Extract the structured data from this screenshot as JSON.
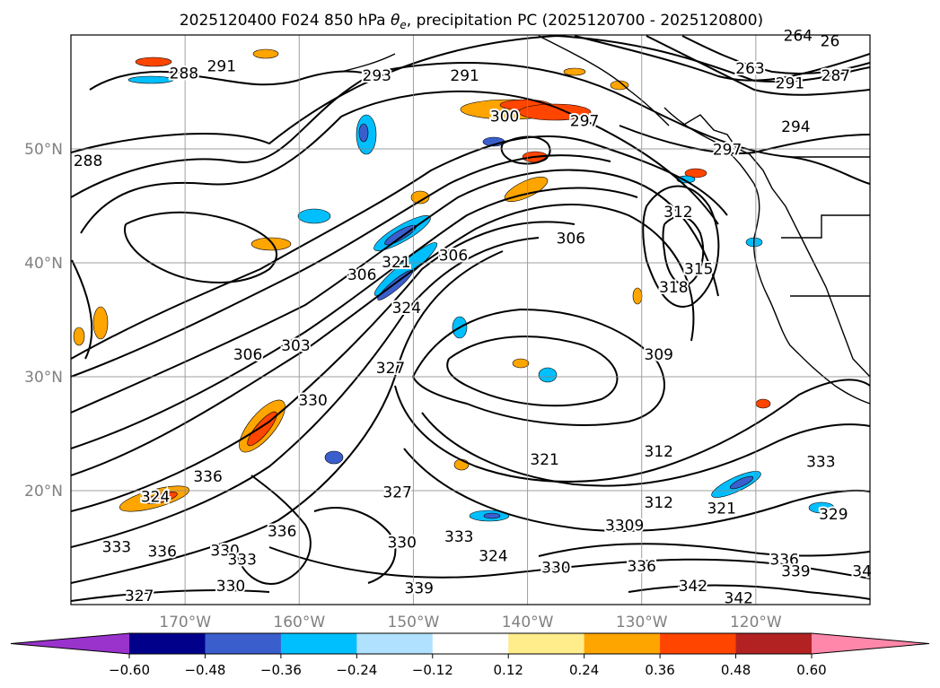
{
  "chart_data": {
    "type": "contour",
    "title": "2025120400 F024 850 hPa θe, precipitation PC (2025120700 - 2025120800)",
    "title_parts": {
      "pre": "2025120400 F024 850 hPa ",
      "theta": "θ",
      "sub": "e",
      "post": ", precipitation PC (2025120700 - 2025120800)"
    },
    "map": {
      "lon_range": [
        -180,
        -110
      ],
      "lat_range": [
        10,
        60
      ],
      "x_ticks": [
        {
          "lon": -170,
          "label": "170°W"
        },
        {
          "lon": -160,
          "label": "160°W"
        },
        {
          "lon": -150,
          "label": "150°W"
        },
        {
          "lon": -140,
          "label": "140°W"
        },
        {
          "lon": -130,
          "label": "130°W"
        },
        {
          "lon": -120,
          "label": "120°W"
        }
      ],
      "y_ticks": [
        {
          "lat": 20,
          "label": "20°N"
        },
        {
          "lat": 30,
          "label": "30°N"
        },
        {
          "lat": 40,
          "label": "40°N"
        },
        {
          "lat": 50,
          "label": "50°N"
        }
      ],
      "grid": true
    },
    "contour_labels": [
      {
        "v": "288",
        "lon": -170.1,
        "lat": 56.2
      },
      {
        "v": "291",
        "lon": -166.8,
        "lat": 56.8
      },
      {
        "v": "293",
        "lon": -153.2,
        "lat": 56.0
      },
      {
        "v": "291",
        "lon": -145.5,
        "lat": 56.0
      },
      {
        "v": "300",
        "lon": -142.0,
        "lat": 52.4
      },
      {
        "v": "297",
        "lon": -135.0,
        "lat": 52.0
      },
      {
        "v": "288",
        "lon": -178.5,
        "lat": 48.5
      },
      {
        "v": "306",
        "lon": -146.5,
        "lat": 40.2
      },
      {
        "v": "306",
        "lon": -136.2,
        "lat": 41.7
      },
      {
        "v": "306",
        "lon": -154.5,
        "lat": 38.5
      },
      {
        "v": "321",
        "lon": -151.5,
        "lat": 39.6
      },
      {
        "v": "324",
        "lon": -150.6,
        "lat": 35.6
      },
      {
        "v": "306",
        "lon": -164.5,
        "lat": 31.5
      },
      {
        "v": "303",
        "lon": -160.3,
        "lat": 32.3
      },
      {
        "v": "312",
        "lon": -126.8,
        "lat": 44.0
      },
      {
        "v": "315",
        "lon": -125.0,
        "lat": 39.0
      },
      {
        "v": "318",
        "lon": -127.2,
        "lat": 37.4
      },
      {
        "v": "309",
        "lon": -128.5,
        "lat": 31.5
      },
      {
        "v": "327",
        "lon": -152.0,
        "lat": 30.3
      },
      {
        "v": "330",
        "lon": -158.8,
        "lat": 27.5
      },
      {
        "v": "321",
        "lon": -138.5,
        "lat": 22.3
      },
      {
        "v": "312",
        "lon": -128.5,
        "lat": 23.0
      },
      {
        "v": "333",
        "lon": -114.3,
        "lat": 22.1
      },
      {
        "v": "336",
        "lon": -168.0,
        "lat": 20.8
      },
      {
        "v": "324",
        "lon": -172.6,
        "lat": 19.0
      },
      {
        "v": "327",
        "lon": -151.4,
        "lat": 19.4
      },
      {
        "v": "312",
        "lon": -128.5,
        "lat": 18.5
      },
      {
        "v": "321",
        "lon": -123.0,
        "lat": 18.0
      },
      {
        "v": "329",
        "lon": -113.2,
        "lat": 17.5
      },
      {
        "v": "333",
        "lon": -176.0,
        "lat": 14.6
      },
      {
        "v": "336",
        "lon": -172.0,
        "lat": 14.2
      },
      {
        "v": "330",
        "lon": -166.5,
        "lat": 14.3
      },
      {
        "v": "333",
        "lon": -165.0,
        "lat": 13.5
      },
      {
        "v": "336",
        "lon": -161.5,
        "lat": 16.0
      },
      {
        "v": "330",
        "lon": -151.0,
        "lat": 15.0
      },
      {
        "v": "333",
        "lon": -146.0,
        "lat": 15.5
      },
      {
        "v": "324",
        "lon": -143.0,
        "lat": 13.8
      },
      {
        "v": "330",
        "lon": -137.5,
        "lat": 12.8
      },
      {
        "v": "336",
        "lon": -130.0,
        "lat": 12.9
      },
      {
        "v": "3309",
        "lon": -131.5,
        "lat": 16.5
      },
      {
        "v": "342",
        "lon": -125.5,
        "lat": 11.2
      },
      {
        "v": "342",
        "lon": -121.5,
        "lat": 10.1
      },
      {
        "v": "339",
        "lon": -149.5,
        "lat": 11.0
      },
      {
        "v": "327",
        "lon": -174.0,
        "lat": 10.3
      },
      {
        "v": "330",
        "lon": -166.0,
        "lat": 11.2
      },
      {
        "v": "336",
        "lon": -117.5,
        "lat": 13.5
      },
      {
        "v": "339",
        "lon": -116.5,
        "lat": 12.5
      },
      {
        "v": "34",
        "lon": -110.7,
        "lat": 12.5
      },
      {
        "v": "264",
        "lon": -116.3,
        "lat": 59.5
      },
      {
        "v": "26",
        "lon": -113.5,
        "lat": 59.0
      },
      {
        "v": "263",
        "lon": -120.5,
        "lat": 56.6
      },
      {
        "v": "291",
        "lon": -117.0,
        "lat": 55.3
      },
      {
        "v": "287",
        "lon": -113.0,
        "lat": 56.0
      },
      {
        "v": "294",
        "lon": -116.5,
        "lat": 51.5
      },
      {
        "v": "297",
        "lon": -122.5,
        "lat": 49.5
      }
    ],
    "colorbar": {
      "extend": "both",
      "colors": [
        "#9933cc",
        "#00008b",
        "#3a5fcd",
        "#00bfff",
        "#b0e2ff",
        "#ffffff",
        "#ffec8b",
        "#ffa500",
        "#ff4500",
        "#b22222",
        "#ff88aa"
      ],
      "tick_labels": [
        "−0.60",
        "−0.48",
        "−0.36",
        "−0.24",
        "−0.12",
        "0.12",
        "0.24",
        "0.36",
        "0.48",
        "0.60"
      ]
    }
  }
}
